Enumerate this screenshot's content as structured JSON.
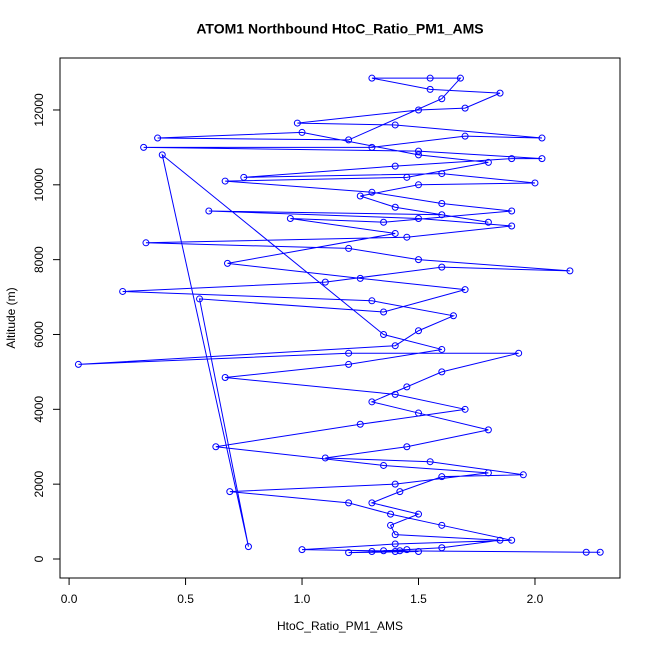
{
  "chart_data": {
    "type": "line",
    "title": "ATOM1 Northbound HtoC_Ratio_PM1_AMS",
    "x_label": "HtoC_Ratio_PM1_AMS",
    "y_label": "Altitude (m)",
    "x": [
      2.28,
      2.22,
      1.35,
      1.4,
      1.45,
      1.3,
      1.6,
      1.85,
      1.4,
      1.38,
      1.5,
      1.3,
      1.42,
      1.6,
      1.95,
      1.55,
      1.1,
      1.45,
      1.8,
      1.5,
      1.3,
      1.45,
      1.6,
      1.93,
      1.2,
      0.04,
      1.4,
      1.5,
      1.65,
      1.3,
      0.23,
      1.1,
      1.6,
      2.15,
      1.5,
      1.2,
      0.33,
      1.45,
      1.9,
      1.5,
      0.6,
      1.6,
      1.8,
      1.4,
      1.25,
      1.5,
      2.0,
      1.6,
      0.75,
      1.4,
      1.9,
      2.03,
      1.5,
      0.32,
      1.3,
      1.7,
      2.03,
      1.4,
      0.98,
      1.5,
      1.7,
      1.85,
      1.55,
      1.3,
      1.55,
      1.68,
      1.6,
      1.2,
      0.38,
      1.0,
      1.5,
      1.8,
      1.45,
      0.67,
      1.3,
      1.6,
      1.9,
      1.35,
      0.95,
      1.4,
      0.68,
      1.25,
      1.7,
      1.35,
      0.56,
      0.77,
      0.4,
      1.35,
      1.6,
      1.2,
      0.67,
      1.4,
      1.7,
      1.25,
      0.63,
      1.35,
      1.8,
      1.4,
      0.69,
      1.2,
      1.38,
      1.6,
      1.9,
      1.4,
      1.0,
      1.5,
      1.2,
      1.42
    ],
    "series": [
      {
        "name": "HtoC_Ratio_PM1_AMS",
        "color": "#0000ff",
        "values": [
          180,
          180,
          220,
          200,
          250,
          200,
          300,
          500,
          650,
          900,
          1200,
          1500,
          1800,
          2200,
          2250,
          2600,
          2700,
          3000,
          3450,
          3900,
          4200,
          4600,
          5000,
          5500,
          5500,
          5200,
          5700,
          6100,
          6500,
          6900,
          7150,
          7400,
          7800,
          7700,
          8000,
          8300,
          8450,
          8600,
          8900,
          9100,
          9300,
          9200,
          9000,
          9400,
          9700,
          10000,
          10050,
          10300,
          10200,
          10500,
          10700,
          10700,
          10900,
          11000,
          11000,
          11300,
          11250,
          11600,
          11650,
          12000,
          12050,
          12450,
          12550,
          12850,
          12850,
          12850,
          12300,
          11200,
          11250,
          11400,
          10800,
          10600,
          10200,
          10100,
          9800,
          9500,
          9300,
          9000,
          9100,
          8700,
          7900,
          7500,
          7200,
          6600,
          6950,
          330,
          10800,
          6000,
          5600,
          5200,
          4850,
          4400,
          4000,
          3600,
          3000,
          2500,
          2300,
          2000,
          1800,
          1500,
          1200,
          900,
          500,
          400,
          250,
          200,
          170,
          220
        ]
      }
    ],
    "xlim": [
      -0.039,
      2.365
    ],
    "ylim": [
      -508,
      13389
    ],
    "xticks": [
      {
        "value": 0,
        "label": "0.0"
      },
      0.5,
      {
        "value": 1,
        "label": "1.0"
      },
      1.5,
      {
        "value": 2,
        "label": "2.0"
      }
    ],
    "yticks": [
      0,
      2000,
      4000,
      6000,
      8000,
      10000,
      12000
    ]
  }
}
